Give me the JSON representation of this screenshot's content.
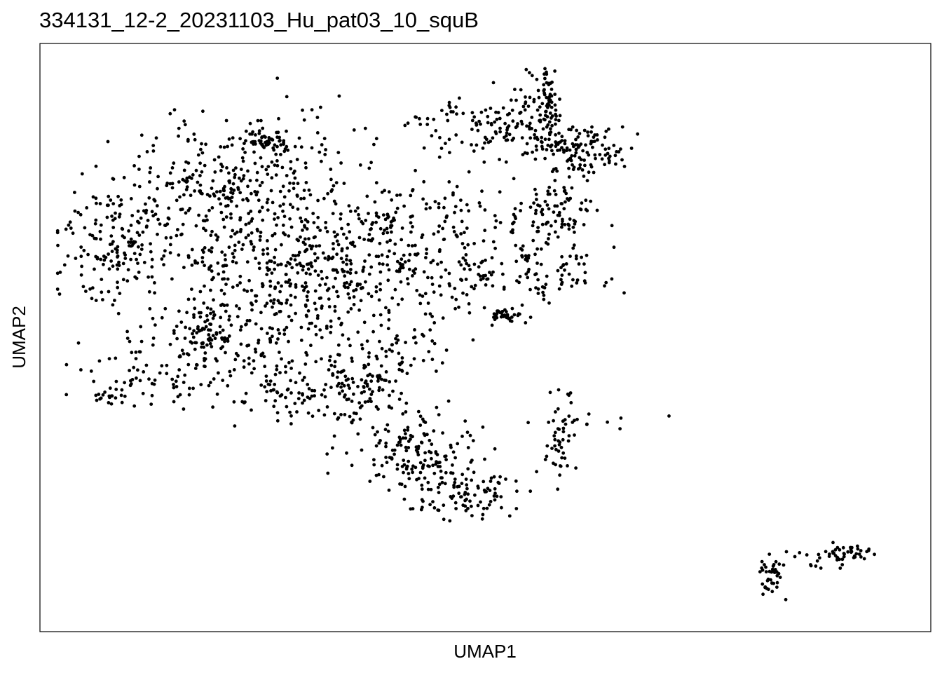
{
  "chart_data": {
    "type": "scatter",
    "title": "334131_12-2_20231103_Hu_pat03_10_squB",
    "xlabel": "UMAP1",
    "ylabel": "UMAP2",
    "xlim": [
      0,
      100
    ],
    "ylim": [
      0,
      100
    ],
    "ticks": "none",
    "grid": false,
    "legend": "none",
    "point_color": "#000000",
    "clusters": [
      {
        "cx": 7.5,
        "cy": 66,
        "sx": 3.2,
        "sy": 5.5,
        "n": 140,
        "seed": 11
      },
      {
        "cx": 17,
        "cy": 74,
        "sx": 5.5,
        "sy": 7.5,
        "n": 260,
        "seed": 12
      },
      {
        "cx": 26,
        "cy": 81,
        "sx": 4.5,
        "sy": 6.0,
        "n": 130,
        "seed": 13
      },
      {
        "cx": 26,
        "cy": 86,
        "sx": 1.4,
        "sy": 1.0,
        "n": 40,
        "seed": 14
      },
      {
        "cx": 28,
        "cy": 58,
        "sx": 7.0,
        "sy": 7.5,
        "n": 320,
        "seed": 15
      },
      {
        "cx": 19,
        "cy": 52,
        "sx": 2.0,
        "sy": 3.0,
        "n": 70,
        "seed": 16
      },
      {
        "cx": 35,
        "cy": 65,
        "sx": 6.0,
        "sy": 6.0,
        "n": 160,
        "seed": 17
      },
      {
        "cx": 43,
        "cy": 70,
        "sx": 6.5,
        "sy": 4.5,
        "n": 150,
        "seed": 18
      },
      {
        "cx": 48,
        "cy": 60,
        "sx": 5.0,
        "sy": 4.0,
        "n": 80,
        "seed": 19
      },
      {
        "cx": 50,
        "cy": 88,
        "sx": 4.5,
        "sy": 3.0,
        "n": 90,
        "seed": 20
      },
      {
        "cx": 57,
        "cy": 90,
        "sx": 2.5,
        "sy": 3.5,
        "n": 90,
        "seed": 21
      },
      {
        "cx": 62,
        "cy": 84,
        "sx": 3.0,
        "sy": 2.0,
        "n": 110,
        "seed": 22
      },
      {
        "cx": 58.5,
        "cy": 93,
        "sx": 0.5,
        "sy": 3.0,
        "n": 40,
        "seed": 23
      },
      {
        "cx": 59,
        "cy": 73,
        "sx": 2.5,
        "sy": 3.0,
        "n": 90,
        "seed": 24
      },
      {
        "cx": 58,
        "cy": 62,
        "sx": 3.0,
        "sy": 3.0,
        "n": 70,
        "seed": 25
      },
      {
        "cx": 53.5,
        "cy": 54.5,
        "sx": 1.0,
        "sy": 0.6,
        "n": 30,
        "seed": 26
      },
      {
        "cx": 36.5,
        "cy": 41,
        "sx": 2.5,
        "sy": 3.0,
        "n": 90,
        "seed": 27
      },
      {
        "cx": 43,
        "cy": 30,
        "sx": 4.0,
        "sy": 4.0,
        "n": 160,
        "seed": 28
      },
      {
        "cx": 49,
        "cy": 22,
        "sx": 3.0,
        "sy": 2.0,
        "n": 90,
        "seed": 29
      },
      {
        "cx": 15,
        "cy": 44,
        "sx": 6.0,
        "sy": 4.0,
        "n": 110,
        "seed": 30
      },
      {
        "cx": 28,
        "cy": 40,
        "sx": 4.0,
        "sy": 3.0,
        "n": 70,
        "seed": 31
      },
      {
        "cx": 40,
        "cy": 48,
        "sx": 3.5,
        "sy": 3.0,
        "n": 50,
        "seed": 32
      },
      {
        "cx": 7,
        "cy": 40,
        "sx": 0.8,
        "sy": 0.5,
        "n": 15,
        "seed": 33
      },
      {
        "cx": 59.5,
        "cy": 32,
        "sx": 1.0,
        "sy": 4.0,
        "n": 45,
        "seed": 34
      },
      {
        "cx": 62,
        "cy": 35,
        "sx": 2.5,
        "sy": 1.0,
        "n": 15,
        "seed": 35
      },
      {
        "cx": 84.5,
        "cy": 7.5,
        "sx": 0.7,
        "sy": 2.0,
        "n": 40,
        "seed": 36
      },
      {
        "cx": 89,
        "cy": 10,
        "sx": 2.5,
        "sy": 1.2,
        "n": 15,
        "seed": 37
      },
      {
        "cx": 93.5,
        "cy": 11.5,
        "sx": 1.5,
        "sy": 0.8,
        "n": 40,
        "seed": 38
      }
    ]
  }
}
